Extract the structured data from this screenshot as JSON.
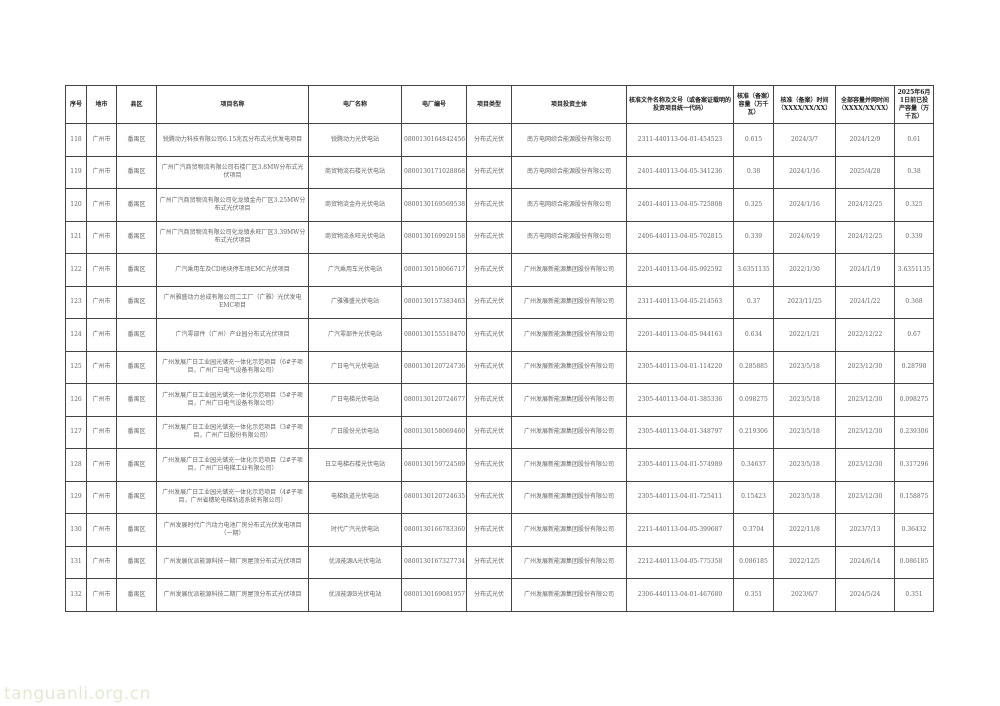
{
  "headers": [
    "序号",
    "地市",
    "县区",
    "项目名称",
    "电厂名称",
    "电厂编号",
    "项目类型",
    "项目投资主体",
    "核准文件名称及文号（或备案证载明的投资项目统一代码）",
    "核准（备案）容量（万千瓦）",
    "核准（备案）时间（XXXX/XX/XX）",
    "全部容量并网时间（XXXX/XX/XX）",
    "2025年6月1日前已投产容量（万千瓦）"
  ],
  "rows": [
    [
      "118",
      "广州市",
      "番禺区",
      "锐腾动力科技有限公司6.15兆瓦分布式光伏发电项目",
      "锐腾动力光伏电站",
      "0800130164842456",
      "分布式光伏",
      "南方电网综合能源股份有限公司",
      "2311-440113-04-01-454523",
      "0.615",
      "2024/3/7",
      "2024/12/9",
      "0.61"
    ],
    [
      "119",
      "广州市",
      "番禺区",
      "广州广汽商贸物流有限公司石楼厂区3.8MW分布式光伏项目",
      "商贸物流石楼光伏电站",
      "0800130171028868",
      "分布式光伏",
      "南方电网综合能源股份有限公司",
      "2401-440113-04-05-341236",
      "0.38",
      "2024/1/16",
      "2025/4/28",
      "0.38"
    ],
    [
      "120",
      "广州市",
      "番禺区",
      "广州广汽商贸物流有限公司化龙镇金舟厂区3.25MW分布式光伏项目",
      "商贸物流金舟光伏电站",
      "0800130169569538",
      "分布式光伏",
      "南方电网综合能源股份有限公司",
      "2401-440113-04-05-725808",
      "0.325",
      "2024/1/16",
      "2024/12/25",
      "0.325"
    ],
    [
      "121",
      "广州市",
      "番禺区",
      "广州广汽商贸物流有限公司化龙镇永旺厂区3.39MW分布式光伏项目",
      "商贸物流永旺光伏电站",
      "0800130169929158",
      "分布式光伏",
      "南方电网综合能源股份有限公司",
      "2406-440113-04-05-702815",
      "0.339",
      "2024/6/19",
      "2024/12/25",
      "0.339"
    ],
    [
      "122",
      "广州市",
      "番禺区",
      "广汽乘用车及CD地块停车场EMC光伏项目",
      "广汽乘用车光伏电站",
      "0800130158066717",
      "分布式光伏",
      "广州发展新能源集团股份有限公司",
      "2201-440113-04-05-992592",
      "3.6351135",
      "2022/1/30",
      "2024/1/19",
      "3.6351135"
    ],
    [
      "123",
      "广州市",
      "番禺区",
      "广州雅盛动力总成有限公司二工厂（广雅）光伏发电EMC项目",
      "广雅雅盛光伏电站",
      "0800130157383463",
      "分布式光伏",
      "广州发展新能源集团股份有限公司",
      "2311-440113-04-05-214563",
      "0.37",
      "2023/11/25",
      "2024/1/22",
      "0.368"
    ],
    [
      "124",
      "广州市",
      "番禺区",
      "广汽零部件（广州）产业园分布式光伏项目",
      "广汽零部件光伏电站",
      "0800130155518470",
      "分布式光伏",
      "广州发展新能源集团股份有限公司",
      "2201-440113-04-05-944163",
      "0.634",
      "2022/1/21",
      "2022/12/22",
      "0.67"
    ],
    [
      "125",
      "广州市",
      "番禺区",
      "广州发展广日工业园光储充一体化示范项目（6#子项目，广州广日电气设备有限公司）",
      "广日电气光伏电站",
      "0800130120724736",
      "分布式光伏",
      "广州发展新能源集团股份有限公司",
      "2305-440113-04-01-114220",
      "0.285885",
      "2023/5/18",
      "2023/12/30",
      "0.28798"
    ],
    [
      "126",
      "广州市",
      "番禺区",
      "广州发展广日工业园光储充一体化示范项目（5#子项目，广州广日电气设备有限公司）",
      "广日电梯光伏电站",
      "0800130120724677",
      "分布式光伏",
      "广州发展新能源集团股份有限公司",
      "2305-440113-04-01-385336",
      "0.098275",
      "2023/5/18",
      "2023/12/30",
      "0.098275"
    ],
    [
      "127",
      "广州市",
      "番禺区",
      "广州发展广日工业园光储充一体化示范项目（3#子项目，广州广日股份有限公司）",
      "广日股份光伏电站",
      "0800130158069460",
      "分布式光伏",
      "广州发展新能源集团股份有限公司",
      "2305-440113-04-01-348797",
      "0.219306",
      "2023/5/18",
      "2023/12/30",
      "0.239306"
    ],
    [
      "128",
      "广州市",
      "番禺区",
      "广州发展广日工业园光储充一体化示范项目（2#子项目，广州广日电梯工业有限公司）",
      "日立电梯石楼光伏电站",
      "0800130159724589",
      "分布式光伏",
      "广州发展新能源集团股份有限公司",
      "2305-440113-04-01-574989",
      "0.34637",
      "2023/5/18",
      "2023/12/30",
      "0.317296"
    ],
    [
      "129",
      "广州市",
      "番禺区",
      "广州发展广日工业园光储充一体化示范项目（4#子项目，广州省穗轮电梯轨道系统有限公司）",
      "电梯轨道光伏电站",
      "0800130120724635",
      "分布式光伏",
      "广州发展新能源集团股份有限公司",
      "2305-440113-04-01-725411",
      "0.15423",
      "2023/5/18",
      "2023/12/30",
      "0.158875"
    ],
    [
      "130",
      "广州市",
      "番禺区",
      "广州发展时代广汽动力电池厂房分布式光伏发电项目（一期）",
      "时代广汽光伏电站",
      "0800130166783360",
      "分布式光伏",
      "广州发展新能源集团股份有限公司",
      "2211-440113-04-05-399687",
      "0.3704",
      "2022/11/8",
      "2023/7/13",
      "0.36432"
    ],
    [
      "131",
      "广州市",
      "番禺区",
      "广州发展优派能源科技一期厂房屋顶分布式光伏项目",
      "优派能源A光伏电站",
      "0800130167327734",
      "分布式光伏",
      "广州发展新能源集团股份有限公司",
      "2212-440113-04-05-775358",
      "0.086185",
      "2022/12/5",
      "2024/6/14",
      "0.086185"
    ],
    [
      "132",
      "广州市",
      "番禺区",
      "广州发展优派能源科技二期厂房屋顶分布式光伏项目",
      "优派能源B光伏电站",
      "0800130169081957",
      "分布式光伏",
      "广州发展新能源集团股份有限公司",
      "2306-440113-04-01-467680",
      "0.351",
      "2023/6/7",
      "2024/5/24",
      "0.351"
    ]
  ],
  "watermark": "tanguanli.org.cn",
  "colors": {
    "border": "#444444",
    "watermark": "#e3ead2"
  }
}
